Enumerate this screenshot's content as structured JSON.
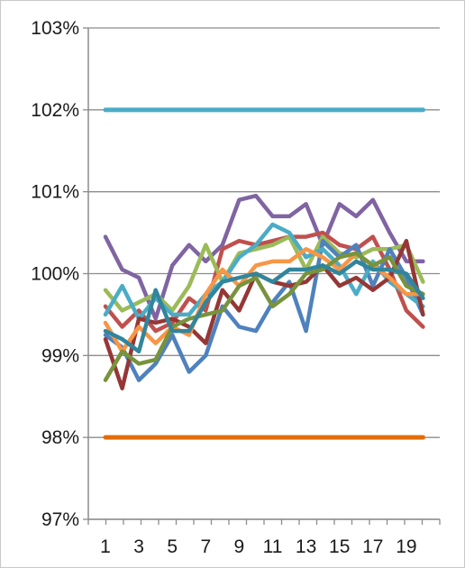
{
  "chart_data": {
    "type": "line",
    "title": "",
    "xlabel": "",
    "ylabel": "",
    "x": [
      1,
      2,
      3,
      4,
      5,
      6,
      7,
      8,
      9,
      10,
      11,
      12,
      13,
      14,
      15,
      16,
      17,
      18,
      19,
      20
    ],
    "x_tick_labels": [
      "1",
      "3",
      "5",
      "7",
      "9",
      "11",
      "13",
      "15",
      "17",
      "19"
    ],
    "ylim": [
      97,
      103
    ],
    "y_tick_labels": [
      "97%",
      "98%",
      "99%",
      "100%",
      "101%",
      "102%",
      "103%"
    ],
    "y_ticks": [
      97,
      98,
      99,
      100,
      101,
      102,
      103
    ],
    "grid": true,
    "legend": "none",
    "reference_lines": [
      {
        "value": 102,
        "color": "#4bacc6"
      },
      {
        "value": 98,
        "color": "#e36c09"
      }
    ],
    "series": [
      {
        "color": "#8064a2",
        "values": [
          100.45,
          100.05,
          99.95,
          99.45,
          100.1,
          100.35,
          100.15,
          100.35,
          100.9,
          100.95,
          100.7,
          100.7,
          100.85,
          100.35,
          100.85,
          100.7,
          100.9,
          100.5,
          100.15,
          100.15
        ]
      },
      {
        "color": "#c0504d",
        "values": [
          99.6,
          99.35,
          99.55,
          99.3,
          99.4,
          99.7,
          99.55,
          100.3,
          100.4,
          100.35,
          100.4,
          100.45,
          100.45,
          100.5,
          100.35,
          100.3,
          100.45,
          100.05,
          99.55,
          99.35
        ]
      },
      {
        "color": "#9bbb59",
        "values": [
          99.8,
          99.55,
          99.65,
          99.75,
          99.55,
          99.85,
          100.35,
          99.9,
          100.25,
          100.3,
          100.35,
          100.45,
          100.05,
          100.45,
          100.25,
          100.2,
          100.3,
          100.3,
          100.35,
          99.9
        ]
      },
      {
        "color": "#4f81bd",
        "values": [
          99.25,
          99.1,
          98.7,
          98.9,
          99.25,
          98.8,
          99.0,
          99.6,
          99.35,
          99.3,
          99.65,
          99.9,
          99.3,
          100.4,
          100.2,
          100.35,
          99.85,
          100.3,
          99.95,
          99.5
        ]
      },
      {
        "color": "#4bacc6",
        "values": [
          99.5,
          99.85,
          99.45,
          99.7,
          99.5,
          99.5,
          99.75,
          99.9,
          100.2,
          100.35,
          100.6,
          100.5,
          100.2,
          100.3,
          100.1,
          99.75,
          100.15,
          99.9,
          99.75,
          99.6
        ]
      },
      {
        "color": "#953735",
        "values": [
          99.2,
          98.6,
          99.45,
          99.4,
          99.45,
          99.35,
          99.15,
          99.8,
          99.55,
          100.0,
          99.9,
          99.85,
          99.9,
          100.1,
          99.85,
          99.95,
          99.8,
          99.95,
          100.4,
          99.5
        ]
      },
      {
        "color": "#f79646",
        "values": [
          99.4,
          99.05,
          99.35,
          99.15,
          99.35,
          99.25,
          99.75,
          100.05,
          99.85,
          100.1,
          100.15,
          100.15,
          100.3,
          100.2,
          100.05,
          100.25,
          100.1,
          99.95,
          99.75,
          99.75
        ]
      },
      {
        "color": "#77933c",
        "values": [
          98.7,
          99.05,
          98.9,
          98.95,
          99.35,
          99.45,
          99.5,
          99.55,
          99.85,
          99.95,
          99.6,
          99.75,
          100.0,
          100.05,
          100.2,
          100.25,
          100.1,
          100.2,
          99.85,
          99.75
        ]
      },
      {
        "color": "#31859c",
        "values": [
          99.3,
          99.2,
          99.05,
          99.8,
          99.3,
          99.3,
          99.65,
          99.9,
          99.95,
          100.0,
          99.9,
          100.05,
          100.05,
          100.1,
          100.0,
          100.15,
          100.05,
          100.05,
          100.0,
          99.7
        ]
      }
    ]
  }
}
